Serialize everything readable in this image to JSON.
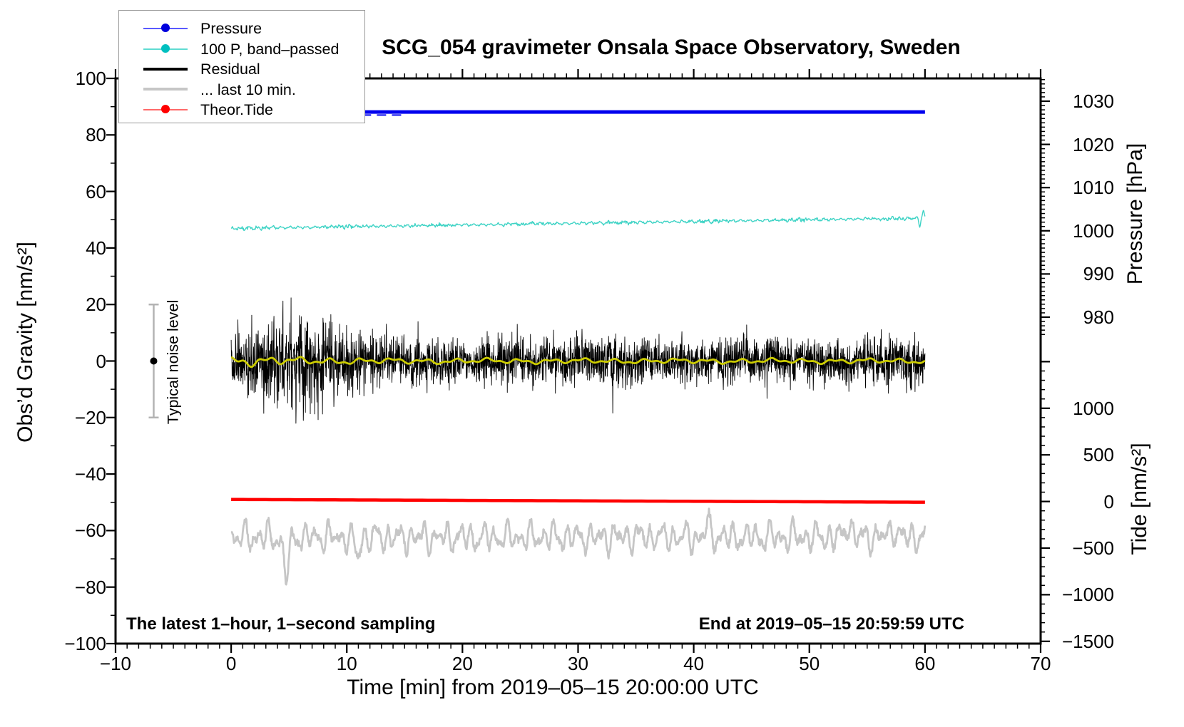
{
  "title": "SCG_054 gravimeter Onsala Space Observatory, Sweden",
  "legend": {
    "items": [
      {
        "label": "Pressure",
        "line_color": "#5a5aff",
        "line_width": 2,
        "marker": "dot",
        "marker_color": "#0000dd"
      },
      {
        "label": "100 P, band–passed",
        "line_color": "#5fdcd2",
        "line_width": 2,
        "marker": "dot",
        "marker_color": "#00bfbf"
      },
      {
        "label": "Residual",
        "line_color": "#000000",
        "line_width": 4,
        "marker": "none",
        "marker_color": ""
      },
      {
        "label": "... last 10 min.",
        "line_color": "#c6c6c6",
        "line_width": 4.5,
        "marker": "none",
        "marker_color": ""
      },
      {
        "label": "Theor.Tide",
        "line_color": "#ff6a6a",
        "line_width": 2,
        "marker": "dot",
        "marker_color": "#ff0000"
      }
    ]
  },
  "annotations": {
    "noise_label": "Typical noise level",
    "sampling_note": "The latest 1–hour, 1–second sampling",
    "end_note": "End at 2019–05–15 20:59:59 UTC"
  },
  "axes": {
    "x": {
      "label": "Time [min] from 2019–05–15 20:00:00 UTC",
      "min": -10,
      "max": 70,
      "major_step": 10,
      "minor_step": 1,
      "tick_values": [
        -10,
        0,
        10,
        20,
        30,
        40,
        50,
        60,
        70
      ],
      "tick_labels": [
        "−10",
        "0",
        "10",
        "20",
        "30",
        "40",
        "50",
        "60",
        "70"
      ]
    },
    "y_left": {
      "label": "Obs’d Gravity [nm/s²]",
      "min": -100,
      "max": 100,
      "major_step": 20,
      "minor_step": 10,
      "tick_values": [
        100,
        80,
        60,
        40,
        20,
        0,
        -20,
        -40,
        -60,
        -80,
        -100
      ],
      "tick_labels": [
        "100",
        "80",
        "60",
        "40",
        "20",
        "0",
        "−20",
        "−40",
        "−60",
        "−80",
        "−100"
      ]
    },
    "y_right_pressure": {
      "label": "Pressure [hPa]",
      "minor_step": 1,
      "minor_range": [
        976,
        1035
      ],
      "tick_values": [
        1030,
        1020,
        1010,
        1000,
        990,
        980
      ],
      "tick_labels": [
        "1030",
        "1020",
        "1010",
        "1000",
        "990",
        "980"
      ]
    },
    "y_right_tide": {
      "label": "Tide [nm/s²]",
      "minor_step": 100,
      "minor_range": [
        -1500,
        1500
      ],
      "tick_values": [
        1000,
        500,
        0,
        -500,
        -1000,
        -1500
      ],
      "tick_labels": [
        "1000",
        "500",
        "0",
        "−500",
        "−1000",
        "−1500"
      ]
    }
  },
  "noise_bar": {
    "x_min": -6.7,
    "center_value": 0,
    "half_range": 20,
    "bar_color": "#b3b3b3",
    "dot_color": "#000000"
  },
  "chart_data": {
    "type": "line",
    "x": {
      "unit": "min",
      "range": [
        0,
        60
      ]
    },
    "series": [
      {
        "name": "Pressure",
        "axis": "pressure_hPa",
        "color": "#0000ee",
        "width": 5,
        "value_start": 1027.5,
        "value_end": 1027.5,
        "description": "barometric pressure, nearly constant ≈1027.5 hPa for the whole hour",
        "dip_segments": [
          [
            11.3,
            12.1
          ],
          [
            12.6,
            13.4
          ],
          [
            13.9,
            14.7
          ]
        ],
        "dip_offset_hPa": -0.7
      },
      {
        "name": "100 P, band–passed",
        "axis": "gravity_nms2",
        "color": "#3ed3c5",
        "width": 1.4,
        "value_start": 46.9,
        "value_end": 50.6,
        "noise_amp": 0.55,
        "seed": 7,
        "description": "100× band-passed pressure, slowly rising from ≈47 to ≈50.5 nm/s²",
        "features": [
          {
            "t": 59.55,
            "dv": -3.2,
            "w": 0.008
          },
          {
            "t": 59.85,
            "dv": 2.4,
            "w": 0.012
          }
        ]
      },
      {
        "name": "Residual",
        "axis": "gravity_nms2",
        "color": "#000000",
        "width": 0.9,
        "mean": 0,
        "sigma": 4.0,
        "burst_center_min": 5.5,
        "burst_factor": 2.15,
        "clip": 22,
        "seed": 3,
        "step_min": 0.02,
        "description": "1-second residual noise around 0, ±20 nm/s² during first ~12 min, ±12 later",
        "features": [
          {
            "t": 4.2,
            "dv": 16,
            "w": 0.001
          },
          {
            "t": 5.6,
            "dv": -17,
            "w": 0.001
          },
          {
            "t": 8.3,
            "dv": 15,
            "w": 0.001
          },
          {
            "t": 33.0,
            "dv": -12,
            "w": 0.001
          }
        ]
      },
      {
        "name": "Residual smoothed (yellow)",
        "axis": "gravity_nms2",
        "color": "#cccc00",
        "width": 2.8,
        "amp_early": 2.5,
        "amp_late": 1.1,
        "description": "smoothed residual drawn over the black noise, wiggling ≈±2 nm/s² around 0"
      },
      {
        "name": "Theor.Tide",
        "axis": "tide_nms2",
        "color": "#ff0000",
        "width": 4.5,
        "value_start": 22,
        "value_end": -8,
        "description": "theoretical tide on right tide axis, almost flat, slightly declining near 0 nm/s²"
      },
      {
        "name": "... last 10 min.",
        "axis": "gravity_nms2",
        "color": "#c6c6c6",
        "width": 2.8,
        "mean": -62.3,
        "wiggle_amp": 4,
        "seed": 11,
        "description": "magnified residual of the last 10 minutes, displayed around −62 on left axis, extremes −79 to −53",
        "features": [
          {
            "t": 4.75,
            "dv": -13,
            "w": 0.12
          },
          {
            "t": 10.9,
            "dv": -7,
            "w": 0.08
          },
          {
            "t": 41.2,
            "dv": 4.5,
            "w": 0.06
          },
          {
            "t": 53.4,
            "dv": 5.5,
            "w": 0.08
          },
          {
            "t": 57.2,
            "dv": 4.5,
            "w": 0.06
          }
        ]
      }
    ]
  }
}
